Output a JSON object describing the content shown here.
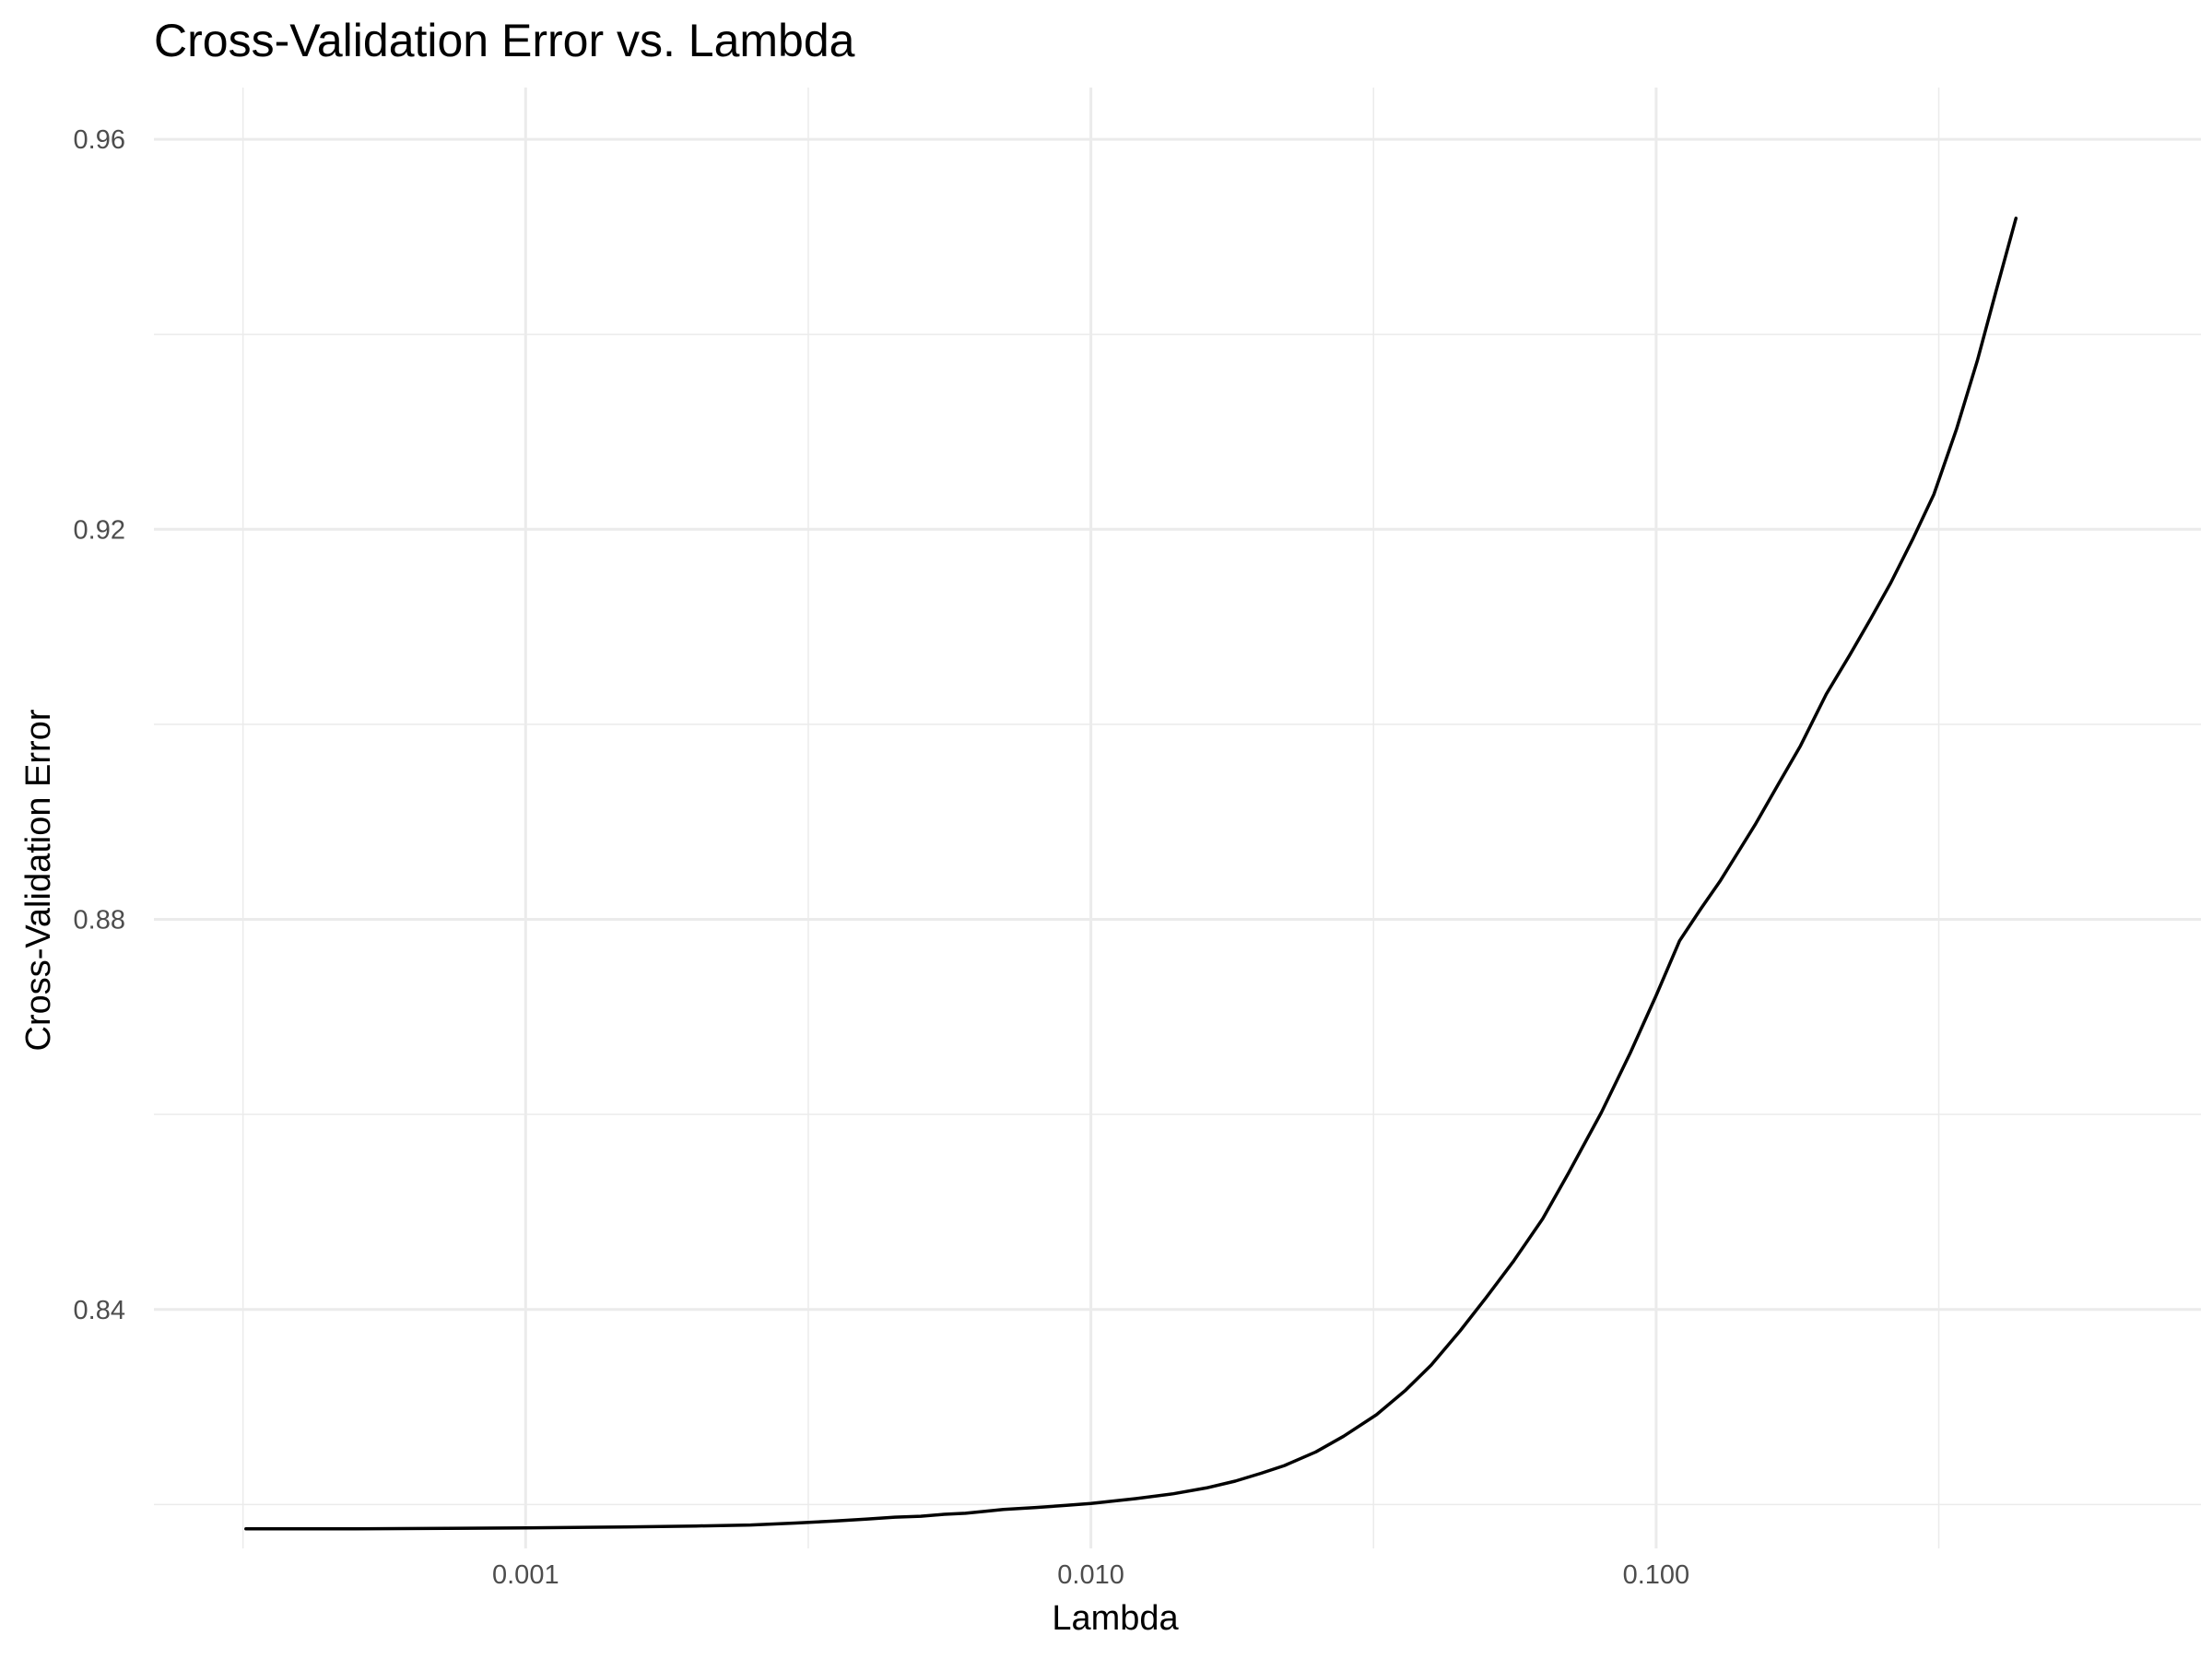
{
  "chart_data": {
    "type": "line",
    "title": "Cross-Validation Error vs. Lambda",
    "xlabel": "Lambda",
    "ylabel": "Cross-Validation Error",
    "x_scale": "log10",
    "xlim": [
      0.00022,
      0.92
    ],
    "ylim": [
      0.8155,
      0.9653
    ],
    "x_ticks": [
      0.001,
      0.01,
      0.1
    ],
    "x_tick_labels": [
      "0.001",
      "0.010",
      "0.100"
    ],
    "y_ticks": [
      0.84,
      0.88,
      0.92,
      0.96
    ],
    "y_tick_labels": [
      "0.84",
      "0.88",
      "0.92",
      "0.96"
    ],
    "grid": true,
    "legend": "none",
    "series": [
      {
        "color": "#000000",
        "x": [
          0.00032,
          0.0005,
          0.001,
          0.0015,
          0.002,
          0.0025,
          0.003,
          0.0035,
          0.004,
          0.0045,
          0.005,
          0.0055,
          0.006,
          0.0065,
          0.007,
          0.008,
          0.009,
          0.01,
          0.012,
          0.014,
          0.016,
          0.018,
          0.02,
          0.022,
          0.025,
          0.028,
          0.032,
          0.036,
          0.04,
          0.045,
          0.05,
          0.056,
          0.063,
          0.07,
          0.08,
          0.09,
          0.1,
          0.11,
          0.12,
          0.13,
          0.14,
          0.15,
          0.165,
          0.18,
          0.2,
          0.22,
          0.24,
          0.26,
          0.285,
          0.31,
          0.34,
          0.37,
          0.4,
          0.433
        ],
        "y": [
          0.8175,
          0.8175,
          0.8176,
          0.8177,
          0.8178,
          0.8179,
          0.8181,
          0.8183,
          0.8185,
          0.8187,
          0.8188,
          0.819,
          0.8191,
          0.8193,
          0.8195,
          0.8197,
          0.8199,
          0.8201,
          0.8206,
          0.8211,
          0.8217,
          0.8224,
          0.8232,
          0.824,
          0.8254,
          0.827,
          0.8292,
          0.8317,
          0.8343,
          0.8378,
          0.8412,
          0.845,
          0.8493,
          0.854,
          0.8602,
          0.8663,
          0.8722,
          0.8778,
          0.8811,
          0.884,
          0.887,
          0.8898,
          0.894,
          0.8978,
          0.9031,
          0.9071,
          0.9109,
          0.9145,
          0.9191,
          0.9236,
          0.9303,
          0.9373,
          0.9446,
          0.9519
        ]
      }
    ]
  }
}
